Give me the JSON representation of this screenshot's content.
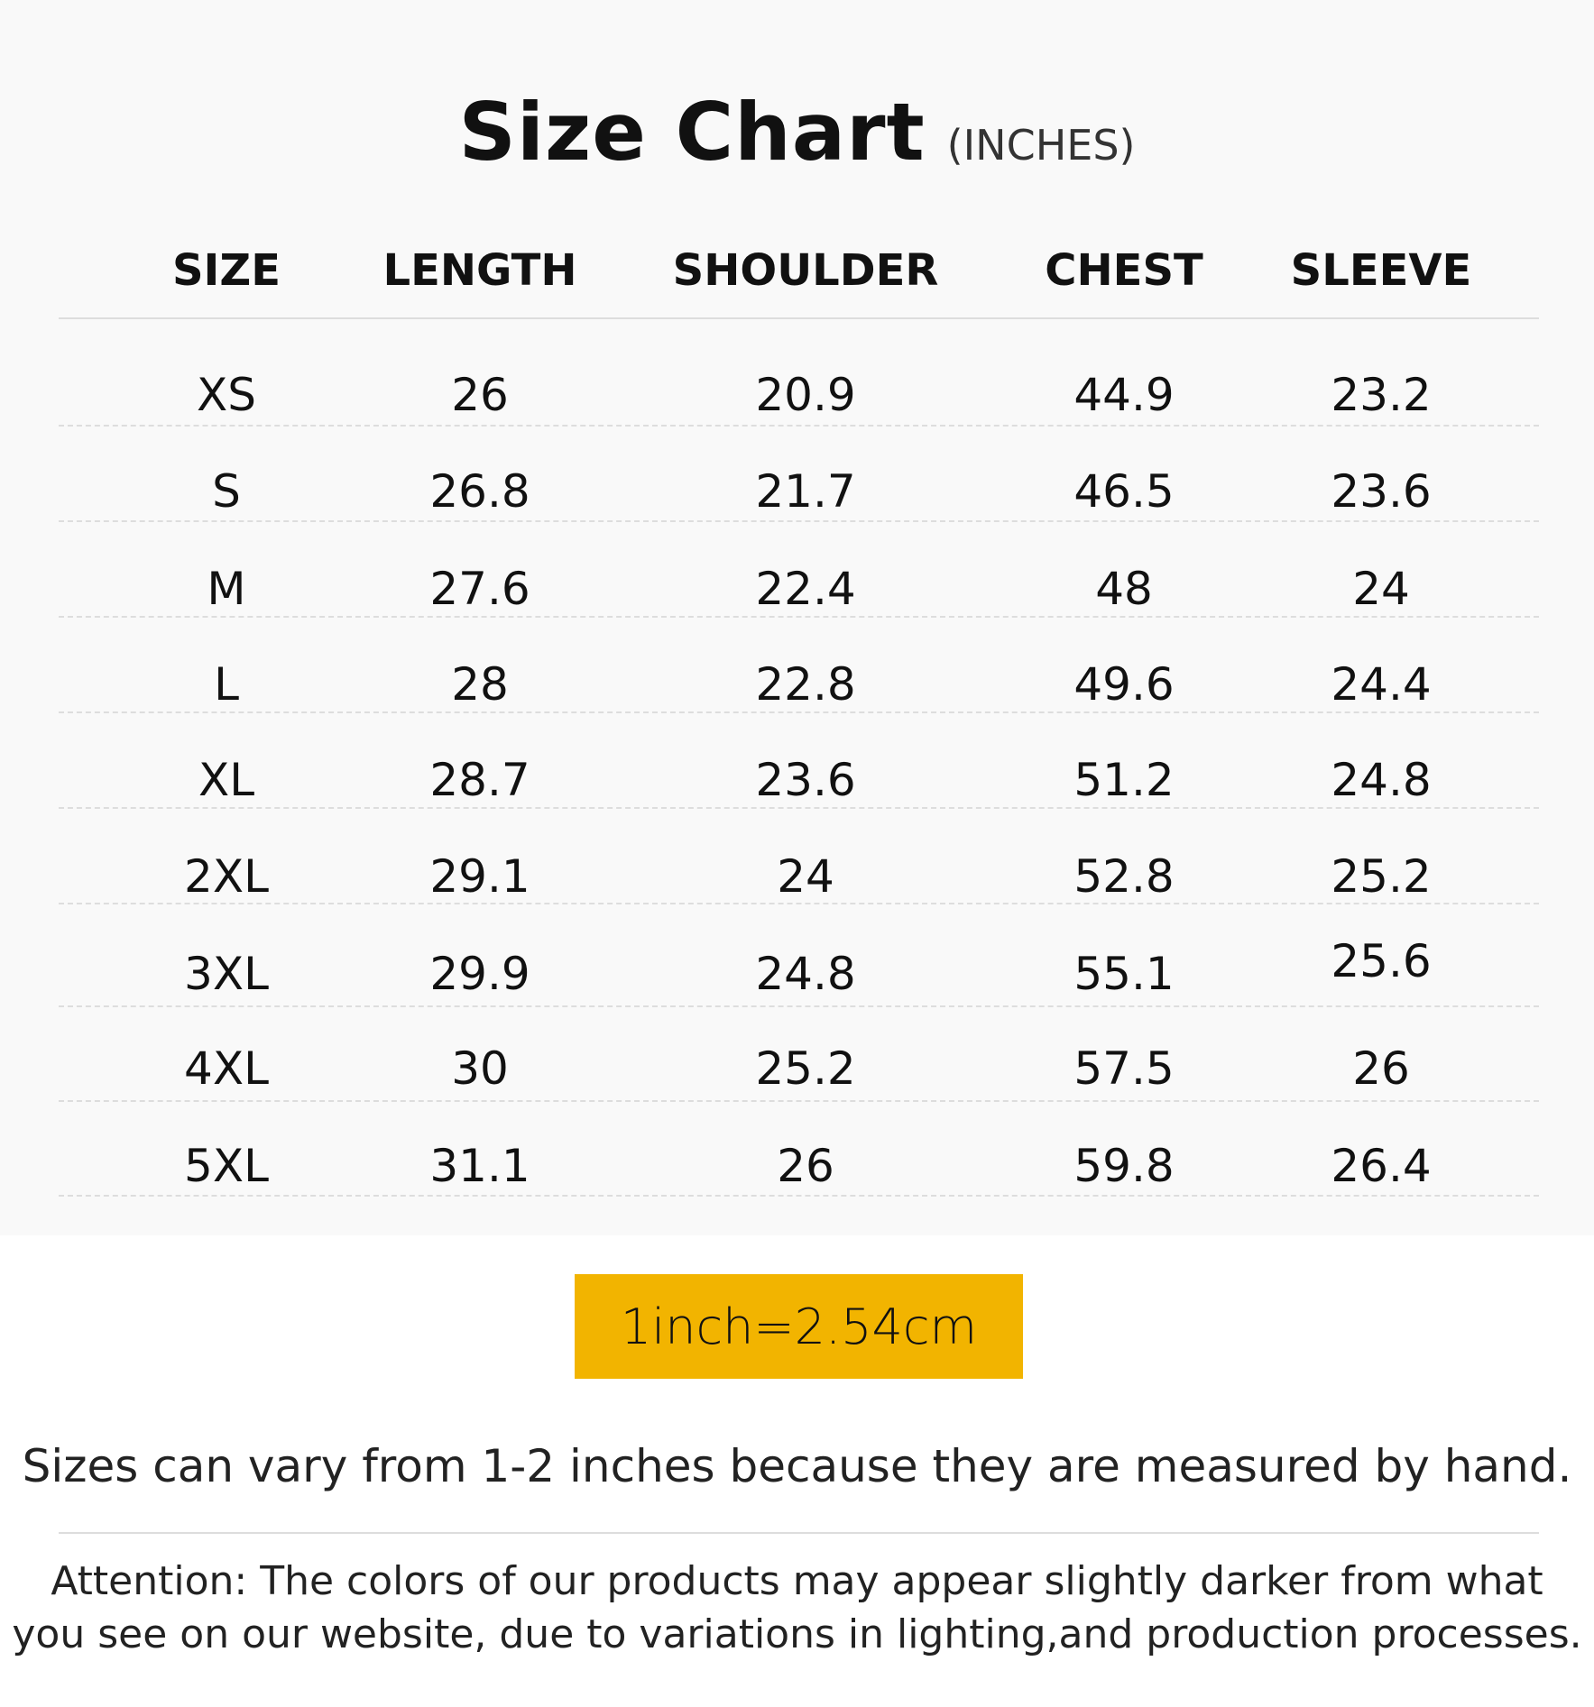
{
  "title": "Size Chart",
  "unit": "(INCHES)",
  "columns": [
    "SIZE",
    "LENGTH",
    "SHOULDER",
    "CHEST",
    "SLEEVE"
  ],
  "rows": [
    [
      "XS",
      "26",
      "20.9",
      "44.9",
      "23.2"
    ],
    [
      "S",
      "26.8",
      "21.7",
      "46.5",
      "23.6"
    ],
    [
      "M",
      "27.6",
      "22.4",
      "48",
      "24"
    ],
    [
      "L",
      "28",
      "22.8",
      "49.6",
      "24.4"
    ],
    [
      "XL",
      "28.7",
      "23.6",
      "51.2",
      "24.8"
    ],
    [
      "2XL",
      "29.1",
      "24",
      "52.8",
      "25.2"
    ],
    [
      "3XL",
      "29.9",
      "24.8",
      "55.1",
      "25.6"
    ],
    [
      "4XL",
      "30",
      "25.2",
      "57.5",
      "26"
    ],
    [
      "5XL",
      "31.1",
      "26",
      "59.8",
      "26.4"
    ]
  ],
  "conversion": "1inch=2.54cm",
  "conversion_color": "#f2b400",
  "note": "Sizes can vary from 1-2 inches because they are measured by hand.",
  "attention": [
    "Attention: The colors of our products may appear slightly darker from what",
    "you see on our website, due to variations in lighting,and production processes."
  ]
}
